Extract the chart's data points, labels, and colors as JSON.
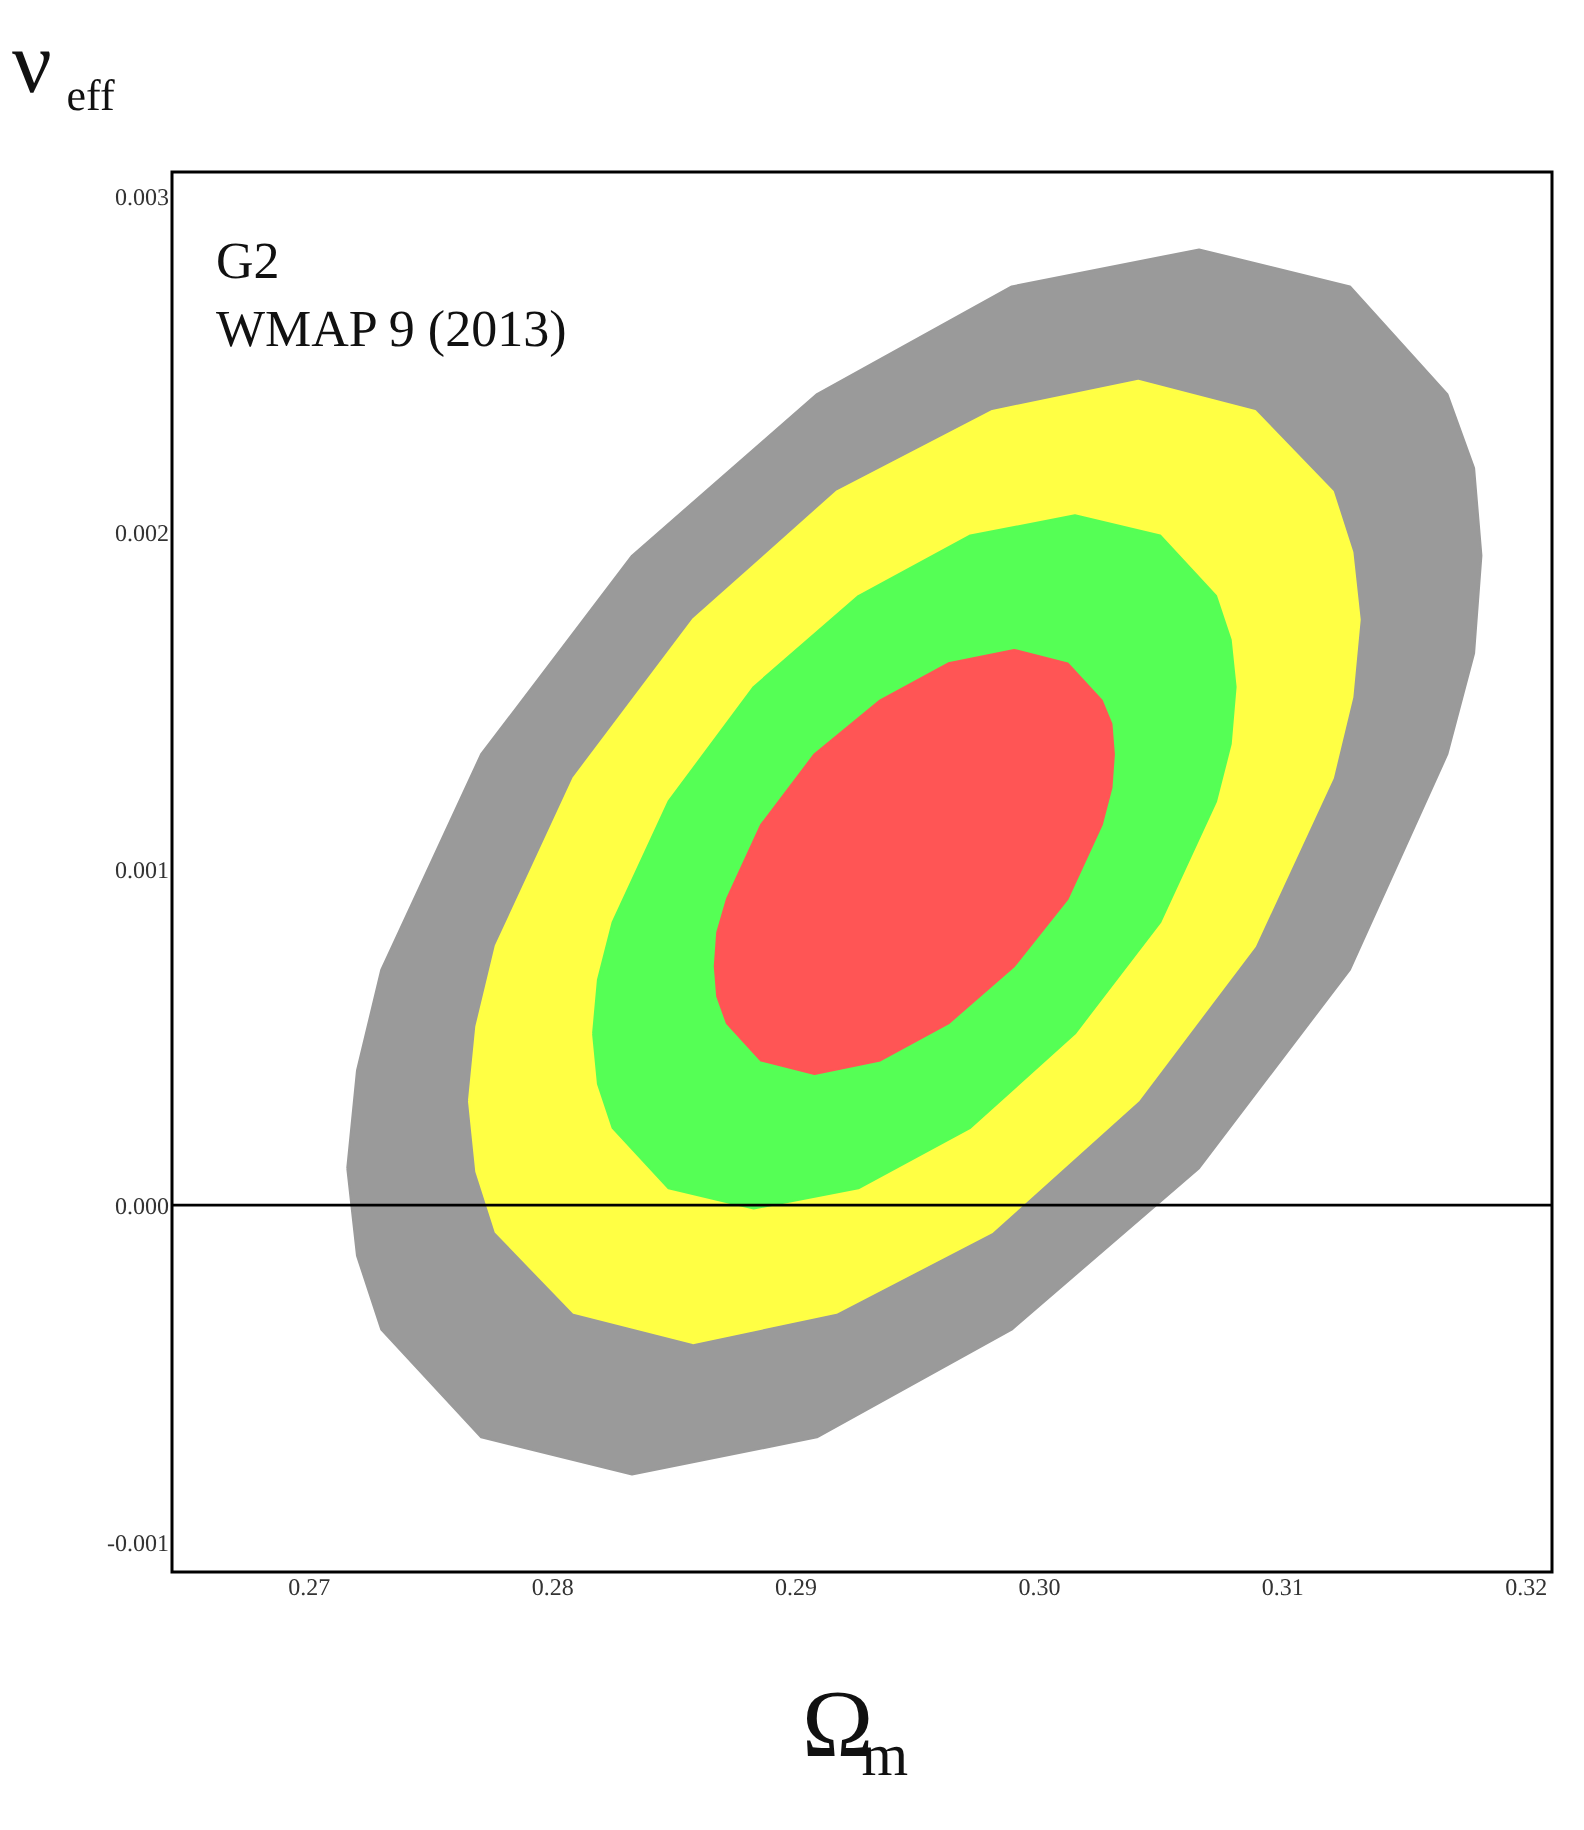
{
  "chart_data": {
    "type": "area",
    "xlabel": "Ω$_{m}$",
    "ylabel": "ν$_{eff}$",
    "annotations": [
      "G2",
      "WMAP 9 (2013)"
    ],
    "xlim": [
      0.2644,
      0.3211
    ],
    "ylim": [
      -0.00109,
      0.00307
    ],
    "xticks": [
      0.27,
      0.28,
      0.29,
      {
        "value": 0.3,
        "label": "0.30"
      },
      0.31,
      0.32
    ],
    "yticks": [
      -0.001,
      {
        "value": 0,
        "label": "0.000"
      },
      0.001,
      0.002,
      0.003
    ],
    "grid": false,
    "ref_lines": [
      {
        "axis": "y",
        "value": 0,
        "color": "#000000"
      }
    ],
    "series": [
      {
        "color": "#9a9a9a",
        "x": [
          0.2716,
          0.272,
          0.273,
          0.2771,
          0.2833,
          0.2909,
          0.2989,
          0.3066,
          0.3128,
          0.3168,
          0.3179,
          0.3182,
          0.3179,
          0.3168,
          0.3128,
          0.3066,
          0.2989,
          0.2909,
          0.2833,
          0.2771,
          0.273,
          0.272
        ],
        "values": [
          0.00011,
          0.0004,
          0.0007,
          0.00134,
          0.00193,
          0.00241,
          0.00273,
          0.00284,
          0.00273,
          0.00241,
          0.00219,
          0.00193,
          0.00164,
          0.00134,
          0.0007,
          0.00011,
          -0.00037,
          -0.00069,
          -0.0008,
          -0.00069,
          -0.00037,
          -0.00015
        ]
      },
      {
        "color": "#ffff44",
        "x": [
          0.2766,
          0.2769,
          0.2777,
          0.2809,
          0.2858,
          0.2917,
          0.2981,
          0.3041,
          0.3089,
          0.3121,
          0.3129,
          0.3132,
          0.3129,
          0.3121,
          0.3089,
          0.3041,
          0.2981,
          0.2917,
          0.2858,
          0.2809,
          0.2777,
          0.2769
        ],
        "values": [
          0.00031,
          0.00053,
          0.00077,
          0.00127,
          0.00174,
          0.00212,
          0.00236,
          0.00245,
          0.00236,
          0.00212,
          0.00194,
          0.00174,
          0.00151,
          0.00127,
          0.00077,
          0.00031,
          -8e-05,
          -0.00032,
          -0.00041,
          -0.00032,
          -8e-05,
          0.0001
        ]
      },
      {
        "color": "#55ff55",
        "x": [
          0.2817,
          0.2819,
          0.2825,
          0.2848,
          0.2883,
          0.2926,
          0.2972,
          0.3015,
          0.305,
          0.3073,
          0.3079,
          0.3081,
          0.3079,
          0.3073,
          0.305,
          0.3015,
          0.2972,
          0.2926,
          0.2883,
          0.2848,
          0.2825,
          0.2819
        ],
        "values": [
          0.00051,
          0.00067,
          0.00084,
          0.0012,
          0.00154,
          0.00181,
          0.00199,
          0.00205,
          0.00199,
          0.00181,
          0.00168,
          0.00154,
          0.00137,
          0.0012,
          0.00084,
          0.00051,
          0.00023,
          5e-05,
          -1e-05,
          5e-05,
          0.00023,
          0.00036
        ]
      },
      {
        "color": "#ff5555",
        "x": [
          0.2867,
          0.2868,
          0.2872,
          0.2886,
          0.2908,
          0.2935,
          0.2963,
          0.299,
          0.3012,
          0.3026,
          0.303,
          0.3031,
          0.303,
          0.3026,
          0.3012,
          0.299,
          0.2963,
          0.2935,
          0.2908,
          0.2886,
          0.2872,
          0.2868
        ],
        "values": [
          0.00071,
          0.00081,
          0.00091,
          0.00113,
          0.00134,
          0.0015,
          0.00161,
          0.00165,
          0.00161,
          0.0015,
          0.00143,
          0.00134,
          0.00124,
          0.00113,
          0.00091,
          0.00071,
          0.00054,
          0.00043,
          0.00039,
          0.00043,
          0.00054,
          0.00062
        ]
      }
    ]
  }
}
